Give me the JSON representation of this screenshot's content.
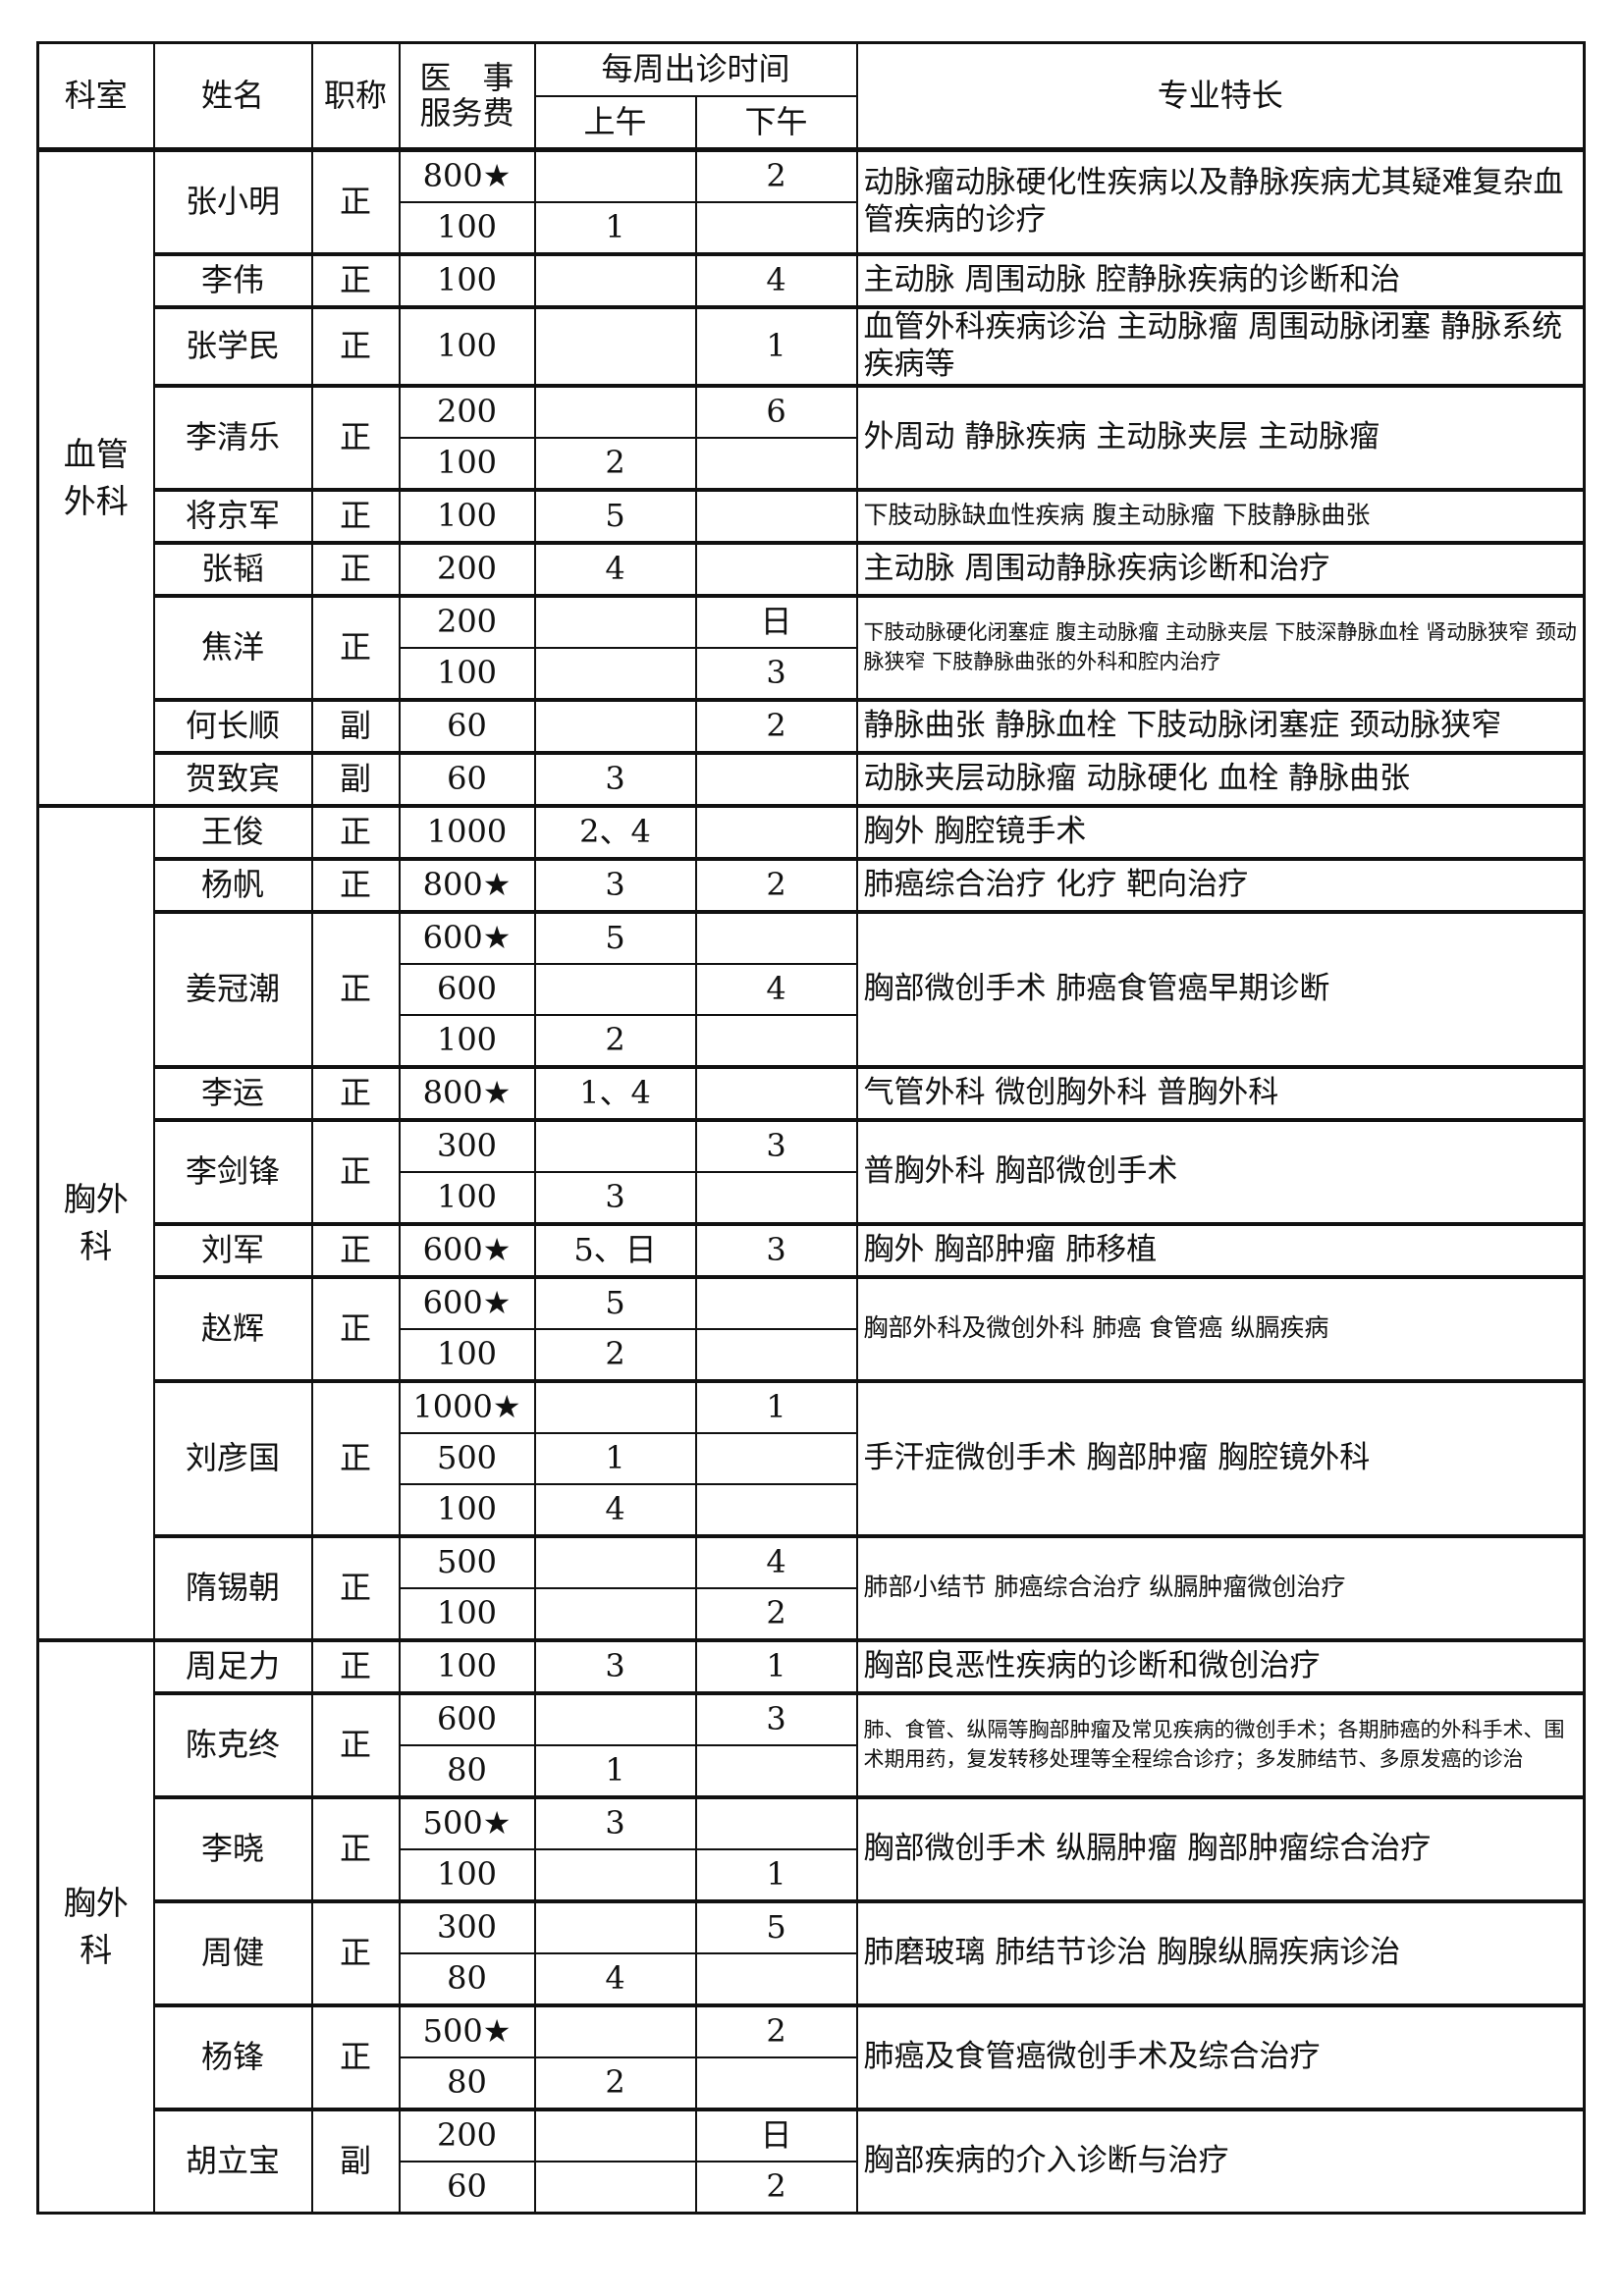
{
  "header": {
    "dept": "科室",
    "name": "姓名",
    "title": "职称",
    "fee_line1": "医　事",
    "fee_line2": "服务费",
    "schedule": "每周出诊时间",
    "am": "上午",
    "pm": "下午",
    "specialty": "专业特长"
  },
  "star_icon": "★",
  "departments": [
    {
      "name": "血管外科",
      "doctors": [
        {
          "name": "张小明",
          "title": "正",
          "specialty": "动脉瘤动脉硬化性疾病以及静脉疾病尤其疑难复杂血管疾病的诊疗",
          "sessions": [
            {
              "fee": "800★",
              "am": "",
              "pm": "2"
            },
            {
              "fee": "100",
              "am": "1",
              "pm": ""
            }
          ]
        },
        {
          "name": "李伟",
          "title": "正",
          "specialty": "主动脉 周围动脉 腔静脉疾病的诊断和治",
          "sessions": [
            {
              "fee": "100",
              "am": "",
              "pm": "4"
            }
          ]
        },
        {
          "name": "张学民",
          "title": "正",
          "specialty": "血管外科疾病诊治 主动脉瘤 周围动脉闭塞 静脉系统疾病等",
          "sessions": [
            {
              "fee": "100",
              "am": "",
              "pm": "1"
            }
          ]
        },
        {
          "name": "李清乐",
          "title": "正",
          "specialty": "外周动 静脉疾病 主动脉夹层 主动脉瘤",
          "sessions": [
            {
              "fee": "200",
              "am": "",
              "pm": "6"
            },
            {
              "fee": "100",
              "am": "2",
              "pm": ""
            }
          ]
        },
        {
          "name": "将京军",
          "title": "正",
          "specialty": "下肢动脉缺血性疾病 腹主动脉瘤 下肢静脉曲张",
          "sessions": [
            {
              "fee": "100",
              "am": "5",
              "pm": ""
            }
          ]
        },
        {
          "name": "张韬",
          "title": "正",
          "specialty": "主动脉 周围动静脉疾病诊断和治疗",
          "sessions": [
            {
              "fee": "200",
              "am": "4",
              "pm": ""
            }
          ]
        },
        {
          "name": "焦洋",
          "title": "正",
          "specialty": "下肢动脉硬化闭塞症 腹主动脉瘤 主动脉夹层 下肢深静脉血栓 肾动脉狭窄 颈动脉狭窄 下肢静脉曲张的外科和腔内治疗",
          "sessions": [
            {
              "fee": "200",
              "am": "",
              "pm": "日"
            },
            {
              "fee": "100",
              "am": "",
              "pm": "3"
            }
          ]
        },
        {
          "name": "何长顺",
          "title": "副",
          "specialty": "静脉曲张 静脉血栓 下肢动脉闭塞症 颈动脉狭窄",
          "sessions": [
            {
              "fee": "60",
              "am": "",
              "pm": "2"
            }
          ]
        },
        {
          "name": "贺致宾",
          "title": "副",
          "specialty": "动脉夹层动脉瘤 动脉硬化 血栓 静脉曲张",
          "sessions": [
            {
              "fee": "60",
              "am": "3",
              "pm": ""
            }
          ]
        }
      ]
    },
    {
      "name": "胸外科",
      "doctors": [
        {
          "name": "王俊",
          "title": "正",
          "specialty": "胸外 胸腔镜手术",
          "sessions": [
            {
              "fee": "1000",
              "am": "2、4",
              "pm": ""
            }
          ]
        },
        {
          "name": "杨帆",
          "title": "正",
          "specialty": "肺癌综合治疗 化疗 靶向治疗",
          "sessions": [
            {
              "fee": "800★",
              "am": "3",
              "pm": "2"
            }
          ]
        },
        {
          "name": "姜冠潮",
          "title": "正",
          "specialty": "胸部微创手术 肺癌食管癌早期诊断",
          "sessions": [
            {
              "fee": "600★",
              "am": "5",
              "pm": ""
            },
            {
              "fee": "600",
              "am": "",
              "pm": "4"
            },
            {
              "fee": "100",
              "am": "2",
              "pm": ""
            }
          ]
        },
        {
          "name": "李运",
          "title": "正",
          "specialty": "气管外科 微创胸外科 普胸外科",
          "sessions": [
            {
              "fee": "800★",
              "am": "1、4",
              "pm": ""
            }
          ]
        },
        {
          "name": "李剑锋",
          "title": "正",
          "specialty": "普胸外科 胸部微创手术",
          "sessions": [
            {
              "fee": "300",
              "am": "",
              "pm": "3"
            },
            {
              "fee": "100",
              "am": "3",
              "pm": ""
            }
          ]
        },
        {
          "name": "刘军",
          "title": "正",
          "specialty": "胸外 胸部肿瘤 肺移植",
          "sessions": [
            {
              "fee": "600★",
              "am": "5、日",
              "pm": "3"
            }
          ]
        },
        {
          "name": "赵辉",
          "title": "正",
          "specialty": "胸部外科及微创外科 肺癌 食管癌 纵膈疾病",
          "sessions": [
            {
              "fee": "600★",
              "am": "5",
              "pm": ""
            },
            {
              "fee": "100",
              "am": "2",
              "pm": ""
            }
          ]
        },
        {
          "name": "刘彦国",
          "title": "正",
          "specialty": "手汗症微创手术 胸部肿瘤 胸腔镜外科",
          "sessions": [
            {
              "fee": "1000★",
              "am": "",
              "pm": "1"
            },
            {
              "fee": "500",
              "am": "1",
              "pm": ""
            },
            {
              "fee": "100",
              "am": "4",
              "pm": ""
            }
          ]
        },
        {
          "name": "隋锡朝",
          "title": "正",
          "specialty": "肺部小结节 肺癌综合治疗 纵膈肿瘤微创治疗",
          "sessions": [
            {
              "fee": "500",
              "am": "",
              "pm": "4"
            },
            {
              "fee": "100",
              "am": "",
              "pm": "2"
            }
          ]
        }
      ]
    },
    {
      "name": "胸外科",
      "doctors": [
        {
          "name": "周足力",
          "title": "正",
          "specialty": "胸部良恶性疾病的诊断和微创治疗",
          "sessions": [
            {
              "fee": "100",
              "am": "3",
              "pm": "1"
            }
          ]
        },
        {
          "name": "陈克终",
          "title": "正",
          "specialty": "肺、食管、纵隔等胸部肿瘤及常见疾病的微创手术；各期肺癌的外科手术、围术期用药，复发转移处理等全程综合诊疗；多发肺结节、多原发癌的诊治",
          "sessions": [
            {
              "fee": "600",
              "am": "",
              "pm": "3"
            },
            {
              "fee": "80",
              "am": "1",
              "pm": ""
            }
          ]
        },
        {
          "name": "李晓",
          "title": "正",
          "specialty": "胸部微创手术 纵膈肿瘤 胸部肿瘤综合治疗",
          "sessions": [
            {
              "fee": "500★",
              "am": "3",
              "pm": ""
            },
            {
              "fee": "100",
              "am": "",
              "pm": "1"
            }
          ]
        },
        {
          "name": "周健",
          "title": "正",
          "specialty": "肺磨玻璃 肺结节诊治 胸腺纵膈疾病诊治",
          "sessions": [
            {
              "fee": "300",
              "am": "",
              "pm": "5"
            },
            {
              "fee": "80",
              "am": "4",
              "pm": ""
            }
          ]
        },
        {
          "name": "杨锋",
          "title": "正",
          "specialty": "肺癌及食管癌微创手术及综合治疗",
          "sessions": [
            {
              "fee": "500★",
              "am": "",
              "pm": "2"
            },
            {
              "fee": "80",
              "am": "2",
              "pm": ""
            }
          ]
        },
        {
          "name": "胡立宝",
          "title": "副",
          "specialty": "胸部疾病的介入诊断与治疗",
          "sessions": [
            {
              "fee": "200",
              "am": "",
              "pm": "日"
            },
            {
              "fee": "60",
              "am": "",
              "pm": "2"
            }
          ]
        }
      ]
    }
  ]
}
